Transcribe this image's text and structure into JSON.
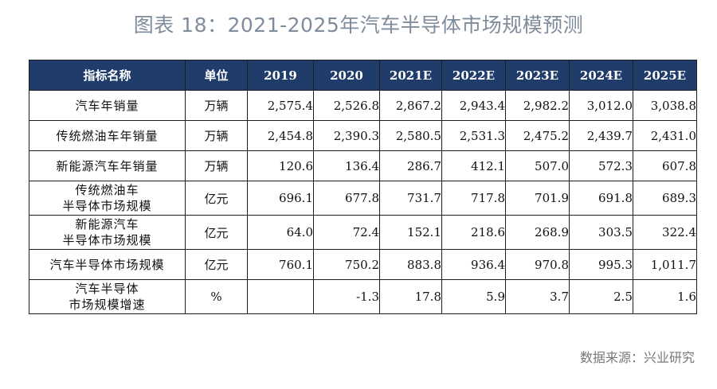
{
  "title": "图表 18：2021-2025年汽车半导体市场规模预测",
  "headers": [
    "指标名称",
    "单位",
    "2019",
    "2020",
    "2021E",
    "2022E",
    "2023E",
    "2024E",
    "2025E"
  ],
  "rows": [
    {
      "name": [
        "汽车年销量"
      ],
      "unit": "万辆",
      "values": [
        "2,575.4",
        "2,526.8",
        "2,867.2",
        "2,943.4",
        "2,982.2",
        "3,012.0",
        "3,038.8"
      ]
    },
    {
      "name": [
        "传统燃油车年销量"
      ],
      "unit": "万辆",
      "values": [
        "2,454.8",
        "2,390.3",
        "2,580.5",
        "2,531.3",
        "2,475.2",
        "2,439.7",
        "2,431.0"
      ]
    },
    {
      "name": [
        "新能源汽车年销量"
      ],
      "unit": "万辆",
      "values": [
        "120.6",
        "136.4",
        "286.7",
        "412.1",
        "507.0",
        "572.3",
        "607.8"
      ]
    },
    {
      "name": [
        "传统燃油车",
        "半导体市场规模"
      ],
      "unit": "亿元",
      "values": [
        "696.1",
        "677.8",
        "731.7",
        "717.8",
        "701.9",
        "691.8",
        "689.3"
      ]
    },
    {
      "name": [
        "新能源汽车",
        "半导体市场规模"
      ],
      "unit": "亿元",
      "values": [
        "64.0",
        "72.4",
        "152.1",
        "218.6",
        "268.9",
        "303.5",
        "322.4"
      ]
    },
    {
      "name": [
        "汽车半导体市场规模"
      ],
      "unit": "亿元",
      "values": [
        "760.1",
        "750.2",
        "883.8",
        "936.4",
        "970.8",
        "995.3",
        "1,011.7"
      ]
    },
    {
      "name": [
        "汽车半导体",
        "市场规模增速"
      ],
      "unit": "%",
      "values": [
        "",
        "-1.3",
        "17.8",
        "5.9",
        "3.7",
        "2.5",
        "1.6"
      ]
    }
  ],
  "source": "数据来源：兴业研究"
}
